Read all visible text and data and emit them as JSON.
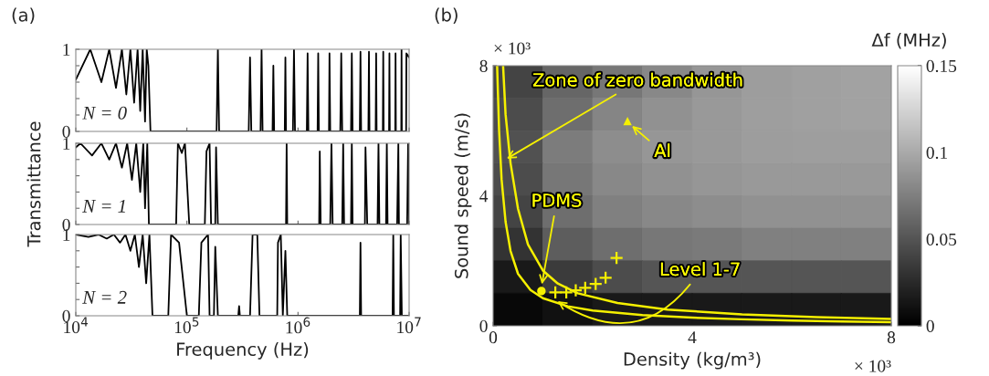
{
  "chart_data": [
    {
      "type": "line",
      "title": "(a)",
      "xlim": [
        10000,
        10000000
      ],
      "ylim": [
        0,
        1
      ],
      "log": "x",
      "tick_labels": "y",
      "xticks": [
        {
          "value": 10000,
          "label": null
        },
        {
          "value": 100000,
          "label": null
        },
        {
          "value": 1000000,
          "label": null
        },
        {
          "value": 10000000,
          "label": null
        }
      ],
      "yticks": [
        0,
        {
          "value": 0.2,
          "label": null
        },
        {
          "value": 0.4,
          "label": null
        },
        {
          "value": 0.6,
          "label": null
        },
        {
          "value": 0.8,
          "label": null
        },
        1
      ],
      "annotations": [
        "N = 0"
      ],
      "series": [
        {
          "color": "#000000",
          "x": [
            10000,
            13500,
            17000,
            20000,
            23000,
            26000,
            28500,
            31000,
            33500,
            36000,
            38000,
            40000,
            42000,
            43500,
            45000,
            47000,
            185000,
            190000,
            195000,
            360000,
            370000,
            380000,
            460000,
            470000,
            480000,
            590000,
            600000,
            610000,
            760000,
            770000,
            780000,
            900000,
            920000,
            940000,
            1200000,
            1220000,
            1240000,
            1500000,
            1520000,
            1540000,
            1900000,
            1920000,
            1950000,
            2400000,
            2450000,
            2500000,
            3000000,
            3050000,
            3100000,
            3600000,
            3650000,
            3700000,
            4300000,
            4350000,
            4400000,
            5000000,
            5050000,
            5100000,
            5800000,
            5850000,
            5900000,
            6600000,
            6650000,
            6700000,
            7500000,
            7550000,
            7600000,
            8500000,
            8550000,
            8600000,
            9400000,
            9450000,
            10000000
          ],
          "values": [
            0.63,
            1.0,
            0.6,
            1.0,
            0.53,
            1.0,
            0.45,
            1.0,
            0.35,
            1.0,
            0.25,
            1.0,
            0.12,
            1.0,
            0.8,
            0,
            0,
            1.0,
            0,
            0,
            0.9,
            0,
            0,
            1.0,
            0,
            0,
            0.8,
            0,
            0,
            0.9,
            0,
            0,
            1.0,
            0,
            0,
            0.95,
            0,
            0,
            0.95,
            0,
            0,
            0.95,
            0,
            0,
            0.95,
            0,
            0,
            0.95,
            0,
            0,
            0.97,
            0,
            0,
            0.97,
            0,
            0,
            0.95,
            0,
            0,
            0.97,
            0,
            0,
            0.95,
            0,
            0,
            0.95,
            0,
            0,
            1.0,
            0,
            0,
            0.95,
            0.9
          ]
        }
      ]
    },
    {
      "type": "line",
      "ylabel": "Transmittance",
      "xlim": [
        10000,
        10000000
      ],
      "ylim": [
        0,
        1
      ],
      "log": "x",
      "tick_labels": "y",
      "xticks": [
        {
          "value": 10000,
          "label": null
        },
        {
          "value": 100000,
          "label": null
        },
        {
          "value": 1000000,
          "label": null
        },
        {
          "value": 10000000,
          "label": null
        }
      ],
      "yticks": [
        0,
        {
          "value": 0.2,
          "label": null
        },
        {
          "value": 0.4,
          "label": null
        },
        {
          "value": 0.6,
          "label": null
        },
        {
          "value": 0.8,
          "label": null
        },
        1
      ],
      "annotations": [
        "N = 1"
      ],
      "series": [
        {
          "color": "#000000",
          "x": [
            10000,
            11000,
            14000,
            17000,
            20000,
            23000,
            26000,
            29000,
            32000,
            35000,
            38000,
            40500,
            42000,
            44000,
            45500,
            80000,
            83000,
            90000,
            96000,
            105000,
            145000,
            150000,
            160000,
            165000,
            180000,
            183000,
            190000,
            780000,
            790000,
            800000,
            1550000,
            1570000,
            1600000,
            1950000,
            2000000,
            2050000,
            2500000,
            2550000,
            2600000,
            3000000,
            3050000,
            3100000,
            4000000,
            4050000,
            4200000,
            5200000,
            5300000,
            5400000,
            6200000,
            6300000,
            6400000,
            7800000,
            8000000,
            8100000,
            9600000,
            9800000,
            10000000
          ],
          "values": [
            0.95,
            1.0,
            0.85,
            1.0,
            0.8,
            1.0,
            0.7,
            1.0,
            0.55,
            1.0,
            0.4,
            1.0,
            0.2,
            1.0,
            0,
            0,
            1.0,
            0.88,
            1.0,
            0,
            0,
            0.9,
            1.0,
            0,
            0,
            0.95,
            0,
            0,
            1.0,
            0,
            0,
            0.9,
            0,
            0,
            1.0,
            0,
            0,
            1.0,
            0,
            0,
            1.0,
            0,
            0,
            0.95,
            0,
            0,
            1.0,
            0,
            0,
            1.0,
            0,
            0,
            1.0,
            0,
            0,
            1.0,
            0
          ]
        }
      ]
    },
    {
      "type": "line",
      "xlabel": "Frequency (Hz)",
      "xlim": [
        10000,
        10000000
      ],
      "ylim": [
        0,
        1
      ],
      "log": "x",
      "xticks": [
        {
          "value": 10000,
          "label": "10$^{4}$"
        },
        {
          "value": 100000,
          "label": "10$^{5}$"
        },
        {
          "value": 1000000,
          "label": "10$^{6}$"
        },
        {
          "value": 10000000,
          "label": "10$^{7}$"
        }
      ],
      "yticks": [
        0,
        {
          "value": 0.2,
          "label": null
        },
        {
          "value": 0.4,
          "label": null
        },
        {
          "value": 0.6,
          "label": null
        },
        {
          "value": 0.8,
          "label": null
        },
        1
      ],
      "annotations": [
        "N = 2"
      ],
      "series": [
        {
          "color": "#000000",
          "x": [
            10000,
            13000,
            16000,
            19000,
            22000,
            25000,
            28000,
            31000,
            34000,
            37000,
            40000,
            43000,
            46000,
            49000,
            68000,
            72000,
            85000,
            100000,
            128000,
            135000,
            155000,
            160000,
            175000,
            180000,
            190000,
            290000,
            295000,
            300000,
            370000,
            390000,
            430000,
            450000,
            650000,
            660000,
            700000,
            730000,
            770000,
            800000,
            3600000,
            3650000,
            3700000,
            7100000,
            7200000,
            7300000,
            8300000,
            8400000,
            8600000,
            10000000
          ],
          "values": [
            1.0,
            0.97,
            1.0,
            0.95,
            1.0,
            0.9,
            1.0,
            0.8,
            1.0,
            0.6,
            1.0,
            0.4,
            1.0,
            0,
            0,
            1.0,
            0.9,
            0,
            0,
            0.9,
            1.0,
            0,
            0,
            0.85,
            0,
            0,
            0.12,
            0,
            0,
            1.0,
            1.0,
            0,
            0,
            0.9,
            1.0,
            0,
            0.8,
            0,
            0,
            0.9,
            0,
            0,
            1.0,
            0,
            0,
            1.0,
            0,
            0
          ]
        }
      ]
    },
    {
      "type": "heatmap",
      "title": "(b)",
      "xlabel": "Density (kg/m³)",
      "ylabel": "Sound speed (m/s)",
      "clabel": "Δf (MHz)",
      "xlim": [
        0,
        8
      ],
      "ylim": [
        0,
        8
      ],
      "xticks": [
        0,
        4,
        8
      ],
      "yticks": [
        0,
        4,
        8
      ],
      "clim": [
        0,
        0.15
      ],
      "cticks": [
        0,
        0.05,
        0.1,
        0.15
      ],
      "cells": [
        [
          0.04,
          0.06,
          0.07,
          0.08,
          0.088,
          0.092,
          0.094,
          0.095
        ],
        [
          0.045,
          0.065,
          0.078,
          0.085,
          0.09,
          0.093,
          0.094,
          0.095
        ],
        [
          0.048,
          0.073,
          0.083,
          0.088,
          0.09,
          0.092,
          0.093,
          0.093
        ],
        [
          0.045,
          0.07,
          0.08,
          0.085,
          0.088,
          0.09,
          0.09,
          0.09
        ],
        [
          0.04,
          0.065,
          0.075,
          0.08,
          0.083,
          0.085,
          0.085,
          0.085
        ],
        [
          0.03,
          0.055,
          0.065,
          0.07,
          0.072,
          0.075,
          0.075,
          0.075
        ],
        [
          0.015,
          0.035,
          0.045,
          0.05,
          0.05,
          0.05,
          0.05,
          0.05
        ],
        [
          0.005,
          0.01,
          0.015,
          0.015,
          0.015,
          0.015,
          0.015,
          0.015
        ]
      ],
      "series": [
        {
          "type": "line",
          "color": "#f5f000",
          "x": [
            0.08,
            0.12,
            0.17,
            0.25,
            0.35,
            0.5,
            0.75,
            1.0,
            1.5,
            2.0,
            3.0,
            4.0,
            5.0,
            6.0,
            7.0,
            8.0
          ],
          "values": [
            8.0,
            6.0,
            4.5,
            3.2,
            2.3,
            1.6,
            1.1,
            0.85,
            0.6,
            0.47,
            0.33,
            0.25,
            0.2,
            0.16,
            0.13,
            0.11
          ]
        },
        {
          "type": "line",
          "color": "#f5f000",
          "x": [
            0.2,
            0.25,
            0.35,
            0.5,
            0.7,
            1.0,
            1.3,
            1.7,
            2.5,
            3.5,
            5.0,
            6.5,
            8.0
          ],
          "values": [
            8.0,
            6.5,
            5.0,
            3.6,
            2.5,
            1.7,
            1.3,
            1.0,
            0.7,
            0.5,
            0.35,
            0.27,
            0.21
          ]
        },
        {
          "type": "scatter",
          "marker": "circle",
          "color": "#f5f000",
          "x": [
            0.97
          ],
          "values": [
            1.07
          ]
        },
        {
          "type": "scatter",
          "marker": "triangle",
          "color": "#f5f000",
          "x": [
            2.7
          ],
          "values": [
            6.3
          ]
        },
        {
          "type": "scatter",
          "marker": "cross",
          "color": "#f5f000",
          "x": [
            1.25,
            1.47,
            1.66,
            1.85,
            2.06,
            2.26,
            2.48
          ],
          "values": [
            1.03,
            1.03,
            1.09,
            1.17,
            1.29,
            1.48,
            2.09
          ]
        }
      ],
      "annotations": [
        {
          "text": "Zone of zero bandwidth",
          "x": 0.23,
          "y": 5.1
        },
        {
          "text": "Al",
          "x": 2.75,
          "y": 6.2
        },
        {
          "text": "PDMS",
          "x": 0.97,
          "y": 1.2
        },
        {
          "text": "Level 1-7",
          "x": 1.25,
          "y": 0.8
        },
        "× 10³",
        "× 10³"
      ]
    }
  ]
}
